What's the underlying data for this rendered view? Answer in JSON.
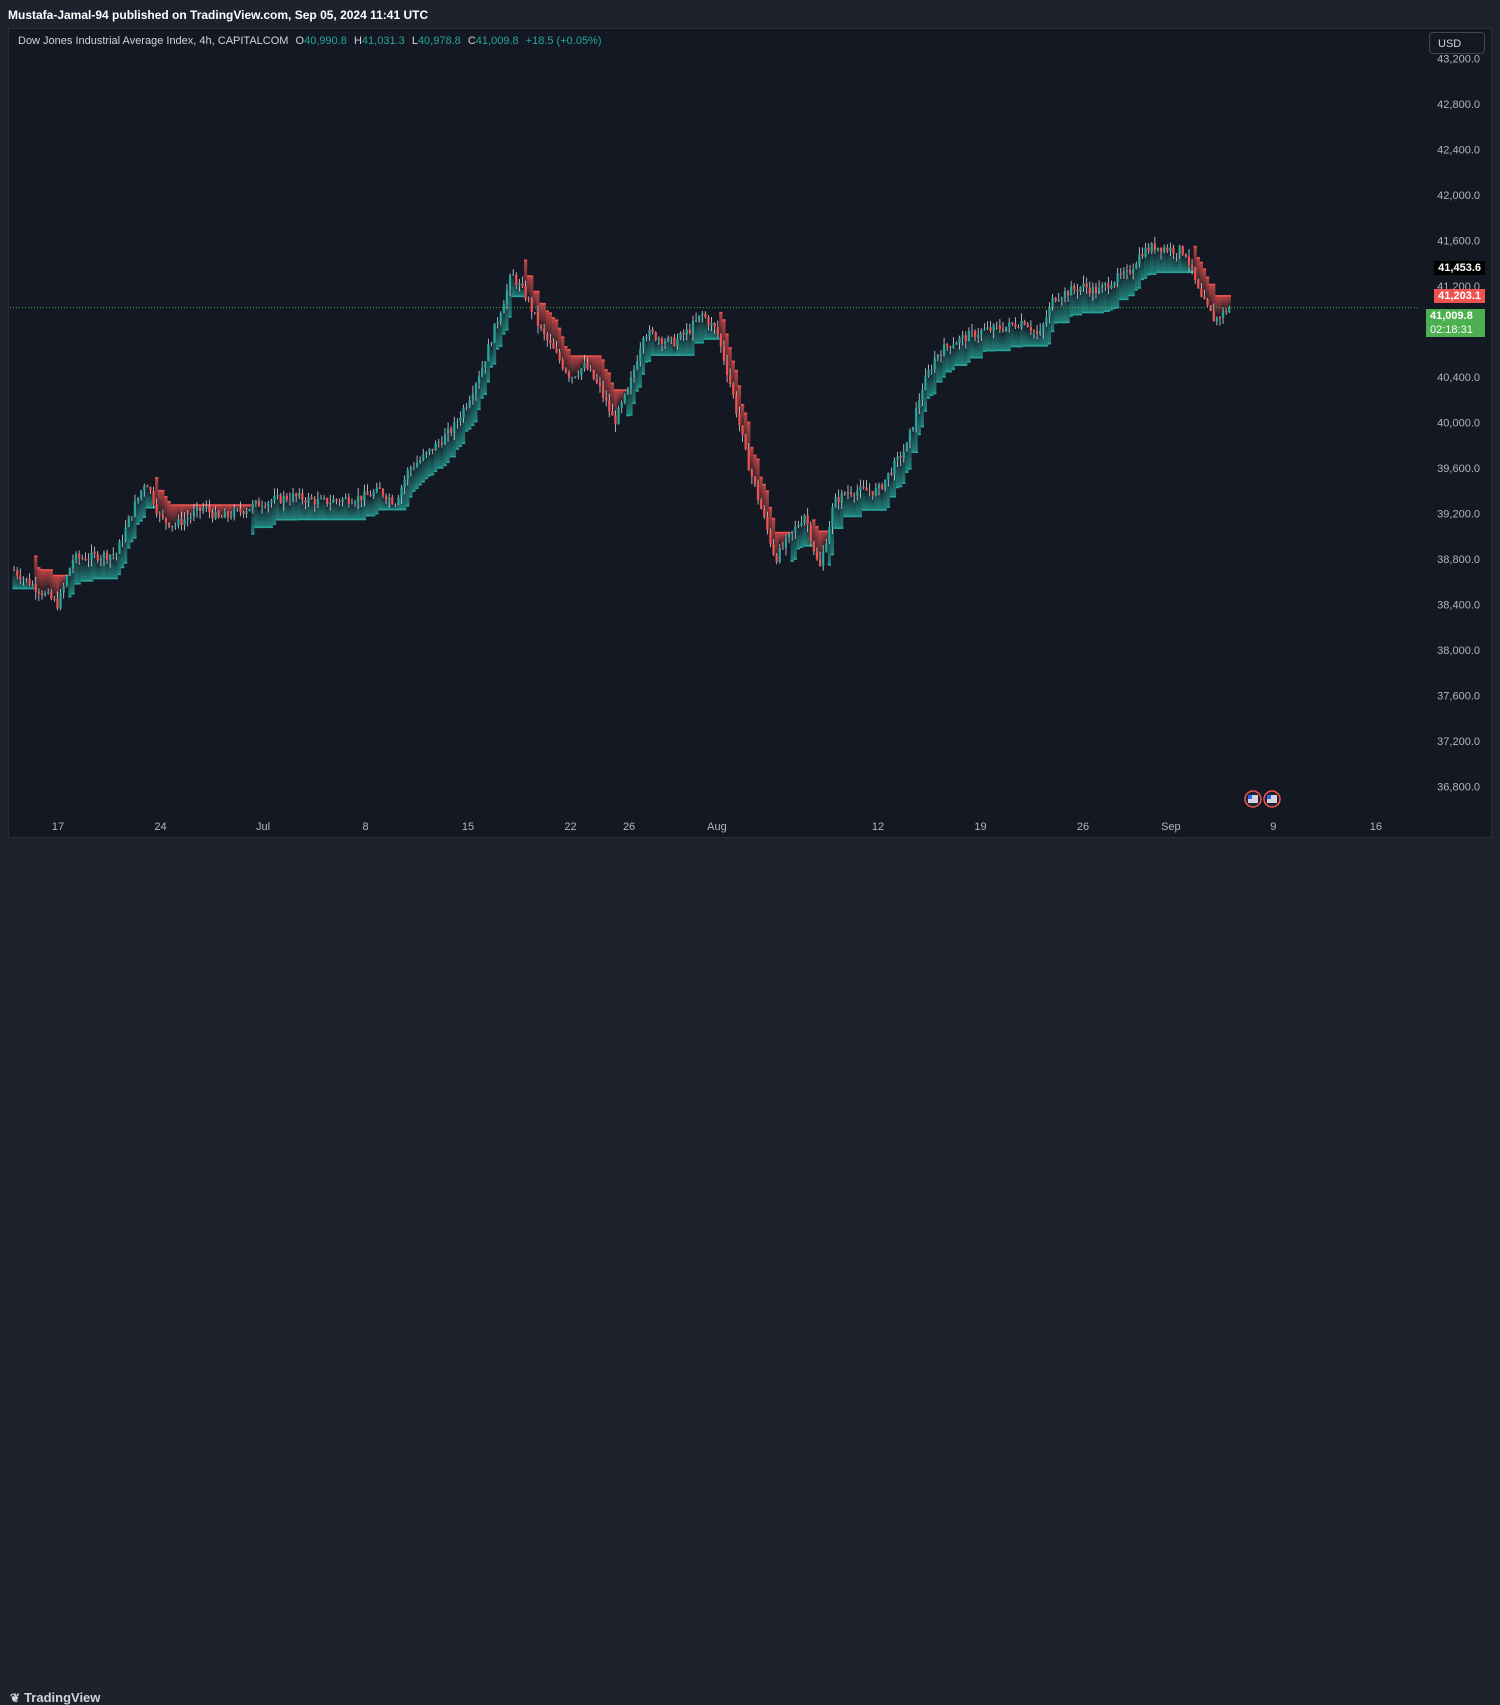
{
  "publisher": "Mustafa-Jamal-94 published on TradingView.com, Sep 05, 2024 11:41 UTC",
  "legend": {
    "symbol": "Dow Jones Industrial Average Index, 4h, CAPITALCOM",
    "o_label": "O",
    "o_value": "40,990.8",
    "h_label": "H",
    "h_value": "41,031.3",
    "l_label": "L",
    "l_value": "40,978.8",
    "c_label": "C",
    "c_value": "41,009.8",
    "change": "+18.5 (+0.05%)"
  },
  "currency_button": "USD",
  "price_tags": {
    "high": "41,453.6",
    "band": "41,203.1",
    "last": "41,009.8",
    "countdown": "02:18:31"
  },
  "brand": "TradingView",
  "colors": {
    "up": "#26a69a",
    "down": "#ef5350",
    "background": "#141823",
    "last_price": "#4caf50"
  },
  "chart_data": {
    "type": "candlestick",
    "title": "Dow Jones Industrial Average Index, 4h, CAPITALCOM",
    "ylim": [
      36550,
      43450
    ],
    "y_ticks": [
      36800,
      37200,
      37600,
      38000,
      38400,
      38800,
      39200,
      39600,
      40000,
      40400,
      40800,
      41200,
      41600,
      42000,
      42400,
      42800,
      43200
    ],
    "y_tick_labels": [
      "36,800.0",
      "37,200.0",
      "37,600.0",
      "38,000.0",
      "38,400.0",
      "38,800.0",
      "39,200.0",
      "39,600.0",
      "40,000.0",
      "40,400.0",
      "40,800.0",
      "41,200.0",
      "41,600.0",
      "42,000.0",
      "42,400.0",
      "42,800.0",
      "43,200.0"
    ],
    "x_ticks": [
      "17",
      "24",
      "Jul",
      "8",
      "15",
      "22",
      "26",
      "Aug",
      "12",
      "19",
      "26",
      "Sep",
      "9",
      "16"
    ],
    "last_price": 41009.8,
    "price_path": [
      [
        "Jun 14",
        38700
      ],
      [
        "Jun 17",
        38400
      ],
      [
        "Jun 18",
        38800
      ],
      [
        "Jun 21",
        38850
      ],
      [
        "Jun 22",
        39200
      ],
      [
        "Jun 23",
        39500
      ],
      [
        "Jun 24",
        39150
      ],
      [
        "Jun 25",
        39100
      ],
      [
        "Jun 27",
        39250
      ],
      [
        "Jun 28",
        39150
      ],
      [
        "Jul 1",
        39300
      ],
      [
        "Jul 3",
        39350
      ],
      [
        "Jul 5",
        39300
      ],
      [
        "Jul 8",
        39350
      ],
      [
        "Jul 9",
        39400
      ],
      [
        "Jul 10",
        39300
      ],
      [
        "Jul 11",
        39600
      ],
      [
        "Jul 12",
        39700
      ],
      [
        "Jul 14",
        39950
      ],
      [
        "Jul 15",
        40200
      ],
      [
        "Jul 16",
        40500
      ],
      [
        "Jul 17",
        40900
      ],
      [
        "Jul 18",
        41300
      ],
      [
        "Jul 19",
        41100
      ],
      [
        "Jul 20",
        40800
      ],
      [
        "Jul 22",
        40400
      ],
      [
        "Jul 23",
        40500
      ],
      [
        "Jul 24",
        40300
      ],
      [
        "Jul 25",
        40000
      ],
      [
        "Jul 26",
        40300
      ],
      [
        "Jul 27",
        40800
      ],
      [
        "Jul 29",
        40700
      ],
      [
        "Jul 30",
        40800
      ],
      [
        "Jul 31",
        40950
      ],
      [
        "Aug 1",
        40800
      ],
      [
        "Aug 2",
        40300
      ],
      [
        "Aug 3",
        39700
      ],
      [
        "Aug 5",
        38800
      ],
      [
        "Aug 6",
        39000
      ],
      [
        "Aug 7",
        39200
      ],
      [
        "Aug 8",
        38700
      ],
      [
        "Aug 9",
        39300
      ],
      [
        "Aug 10",
        39400
      ],
      [
        "Aug 12",
        39400
      ],
      [
        "Aug 14",
        39800
      ],
      [
        "Aug 15",
        40300
      ],
      [
        "Aug 16",
        40600
      ],
      [
        "Aug 17",
        40700
      ],
      [
        "Aug 19",
        40800
      ],
      [
        "Aug 21",
        40850
      ],
      [
        "Aug 22",
        40900
      ],
      [
        "Aug 23",
        40750
      ],
      [
        "Aug 24",
        41100
      ],
      [
        "Aug 26",
        41200
      ],
      [
        "Aug 27",
        41150
      ],
      [
        "Aug 28",
        41250
      ],
      [
        "Aug 29",
        41300
      ],
      [
        "Aug 30",
        41500
      ],
      [
        "Aug 31",
        41550
      ],
      [
        "Sep 2",
        41500
      ],
      [
        "Sep 3",
        41100
      ],
      [
        "Sep 4",
        40900
      ],
      [
        "Sep 5",
        41009.8
      ]
    ]
  }
}
